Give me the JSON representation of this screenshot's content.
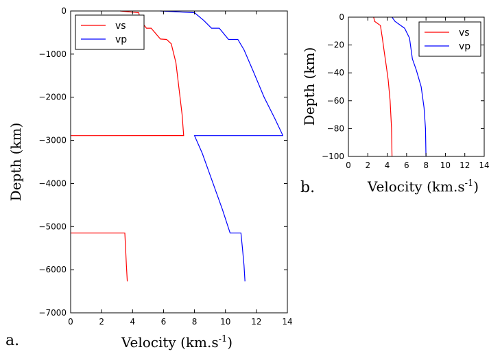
{
  "chart_data": [
    {
      "type": "line",
      "panel_label": "a.",
      "xlabel": "Velocity",
      "xunit": "(km.s",
      "xunit_sup": "-1",
      "xunit_close": ")",
      "ylabel": "Depth (km)",
      "xlim": [
        0,
        14
      ],
      "ylim": [
        -7000,
        0
      ],
      "xticks": [
        0,
        2,
        4,
        6,
        8,
        10,
        12,
        14
      ],
      "yticks": [
        0,
        -1000,
        -2000,
        -3000,
        -4000,
        -5000,
        -6000,
        -7000
      ],
      "xtick_labels": [
        "0",
        "2",
        "4",
        "6",
        "8",
        "10",
        "12",
        "14"
      ],
      "ytick_labels": [
        "0",
        "−1000",
        "−2000",
        "−3000",
        "−4000",
        "−5000",
        "−6000",
        "−7000"
      ],
      "legend_position": "top-left",
      "series": [
        {
          "name": "vs",
          "color": "#ff0000",
          "points": [
            [
              3.2,
              0
            ],
            [
              4.4,
              -40
            ],
            [
              4.5,
              -220
            ],
            [
              4.9,
              -400
            ],
            [
              5.2,
              -400
            ],
            [
              5.8,
              -650
            ],
            [
              6.2,
              -660
            ],
            [
              6.5,
              -760
            ],
            [
              6.8,
              -1200
            ],
            [
              7.0,
              -1800
            ],
            [
              7.2,
              -2400
            ],
            [
              7.3,
              -2889
            ],
            [
              0,
              -2891
            ]
          ],
          "points2": [
            [
              0,
              -5150
            ],
            [
              3.5,
              -5150
            ],
            [
              3.55,
              -5500
            ],
            [
              3.6,
              -5900
            ],
            [
              3.66,
              -6271
            ]
          ]
        },
        {
          "name": "vp",
          "color": "#0000ff",
          "points": [
            [
              5.8,
              0
            ],
            [
              8.0,
              -40
            ],
            [
              8.6,
              -220
            ],
            [
              9.1,
              -400
            ],
            [
              9.6,
              -400
            ],
            [
              10.2,
              -660
            ],
            [
              10.8,
              -660
            ],
            [
              11.2,
              -900
            ],
            [
              11.8,
              -1400
            ],
            [
              12.5,
              -2000
            ],
            [
              13.2,
              -2500
            ],
            [
              13.7,
              -2880
            ],
            [
              13.7,
              -2891
            ],
            [
              8.0,
              -2891
            ],
            [
              8.5,
              -3300
            ],
            [
              9.2,
              -4000
            ],
            [
              9.8,
              -4600
            ],
            [
              10.3,
              -5150
            ],
            [
              11.0,
              -5150
            ],
            [
              11.1,
              -5500
            ],
            [
              11.2,
              -5900
            ],
            [
              11.26,
              -6271
            ]
          ]
        }
      ]
    },
    {
      "type": "line",
      "panel_label": "b.",
      "xlabel": "Velocity",
      "xunit": "(km.s",
      "xunit_sup": "-1",
      "xunit_close": ")",
      "ylabel": "Depth (km)",
      "xlim": [
        0,
        14
      ],
      "ylim": [
        -100,
        0
      ],
      "xticks": [
        0,
        2,
        4,
        6,
        8,
        10,
        12,
        14
      ],
      "yticks": [
        0,
        -20,
        -40,
        -60,
        -80,
        -100
      ],
      "xtick_labels": [
        "0",
        "2",
        "4",
        "6",
        "8",
        "10",
        "12",
        "14"
      ],
      "ytick_labels": [
        "0",
        "−20",
        "−40",
        "−60",
        "−80",
        "−100"
      ],
      "legend_position": "top-right",
      "series": [
        {
          "name": "vs",
          "color": "#ff0000",
          "points": [
            [
              2.6,
              0
            ],
            [
              2.7,
              -3
            ],
            [
              3.3,
              -6
            ],
            [
              3.5,
              -15
            ],
            [
              3.7,
              -25
            ],
            [
              3.9,
              -35
            ],
            [
              4.1,
              -45
            ],
            [
              4.3,
              -60
            ],
            [
              4.45,
              -80
            ],
            [
              4.5,
              -100
            ]
          ]
        },
        {
          "name": "vp",
          "color": "#0000ff",
          "points": [
            [
              4.5,
              0
            ],
            [
              4.8,
              -3
            ],
            [
              5.8,
              -8
            ],
            [
              6.3,
              -15
            ],
            [
              6.6,
              -30
            ],
            [
              7.0,
              -38
            ],
            [
              7.5,
              -50
            ],
            [
              7.8,
              -65
            ],
            [
              7.95,
              -80
            ],
            [
              8.0,
              -100
            ]
          ]
        }
      ]
    }
  ]
}
